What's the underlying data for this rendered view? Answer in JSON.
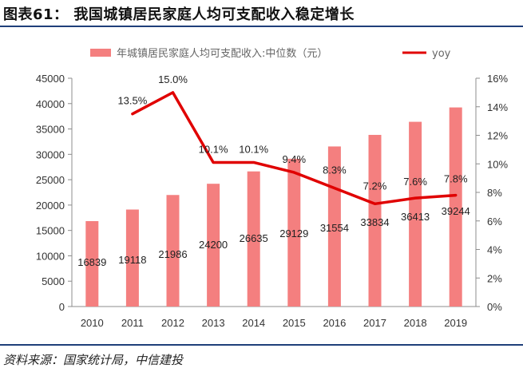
{
  "figure": {
    "title": "图表61：  我国城镇居民家庭人均可支配收入稳定增长",
    "source": "资料来源：国家统计局，中信建投"
  },
  "colors": {
    "bar": "#f47f7f",
    "line": "#e00000",
    "rule": "#1f3f7a"
  },
  "chart_data": {
    "type": "bar",
    "categories": [
      "2010",
      "2011",
      "2012",
      "2013",
      "2014",
      "2015",
      "2016",
      "2017",
      "2018",
      "2019"
    ],
    "series": [
      {
        "name": "年城镇居民家庭人均可支配收入:中位数（元）",
        "type": "bar",
        "axis": "left",
        "values": [
          16839,
          19118,
          21986,
          24200,
          26635,
          29129,
          31554,
          33834,
          36413,
          39244
        ],
        "labels": [
          "16839",
          "19118",
          "21986",
          "24200",
          "26635",
          "29129",
          "31554",
          "33834",
          "36413",
          "39244"
        ]
      },
      {
        "name": "yoy",
        "type": "line",
        "axis": "right",
        "values": [
          null,
          13.5,
          15.0,
          10.1,
          10.1,
          9.4,
          8.3,
          7.2,
          7.6,
          7.8
        ],
        "labels": [
          null,
          "13.5%",
          "15.0%",
          "10.1%",
          "10.1%",
          "9.4%",
          "8.3%",
          "7.2%",
          "7.6%",
          "7.8%"
        ]
      }
    ],
    "y_left": {
      "range": [
        0,
        45000
      ],
      "ticks": [
        0,
        5000,
        10000,
        15000,
        20000,
        25000,
        30000,
        35000,
        40000,
        45000
      ],
      "tick_labels": [
        "0",
        "5000",
        "10000",
        "15000",
        "20000",
        "25000",
        "30000",
        "35000",
        "40000",
        "45000"
      ]
    },
    "y_right": {
      "range": [
        0,
        16
      ],
      "ticks": [
        0,
        2,
        4,
        6,
        8,
        10,
        12,
        14,
        16
      ],
      "tick_labels": [
        "0%",
        "2%",
        "4%",
        "6%",
        "8%",
        "10%",
        "12%",
        "14%",
        "16%"
      ]
    },
    "grid": false,
    "legend_position": "top"
  }
}
